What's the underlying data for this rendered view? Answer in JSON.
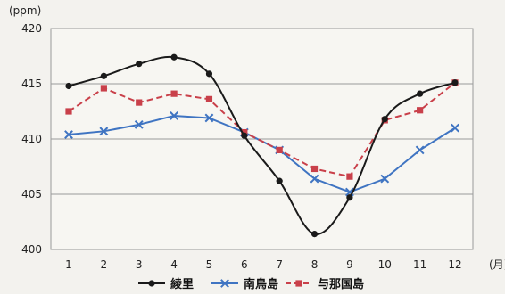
{
  "chart_data": {
    "type": "line",
    "title": "",
    "y_unit": "(ppm)",
    "x_unit": "(月)",
    "x": [
      1,
      2,
      3,
      4,
      5,
      6,
      7,
      8,
      9,
      10,
      11,
      12
    ],
    "ylim": [
      400,
      420
    ],
    "yticks": [
      400,
      405,
      410,
      415,
      420
    ],
    "grid": "horizontal",
    "legend_position": "bottom",
    "series": [
      {
        "name": "綾里",
        "color": "#1a1a1a",
        "marker": "circle",
        "line_style": "solid",
        "smooth": true,
        "values": [
          414.8,
          415.7,
          416.8,
          417.4,
          415.9,
          410.3,
          406.2,
          401.4,
          404.7,
          411.8,
          414.1,
          415.1
        ]
      },
      {
        "name": "南鳥島",
        "color": "#3f74c2",
        "marker": "x",
        "line_style": "solid",
        "smooth": false,
        "values": [
          410.4,
          410.7,
          411.3,
          412.1,
          411.9,
          410.6,
          409.0,
          406.4,
          405.2,
          406.4,
          409.0,
          411.0
        ]
      },
      {
        "name": "与那国島",
        "color": "#c9404a",
        "marker": "square",
        "line_style": "dashed",
        "smooth": false,
        "values": [
          412.5,
          414.6,
          413.3,
          414.1,
          413.6,
          410.6,
          409.0,
          407.3,
          406.6,
          411.7,
          412.6,
          415.1
        ]
      }
    ]
  }
}
